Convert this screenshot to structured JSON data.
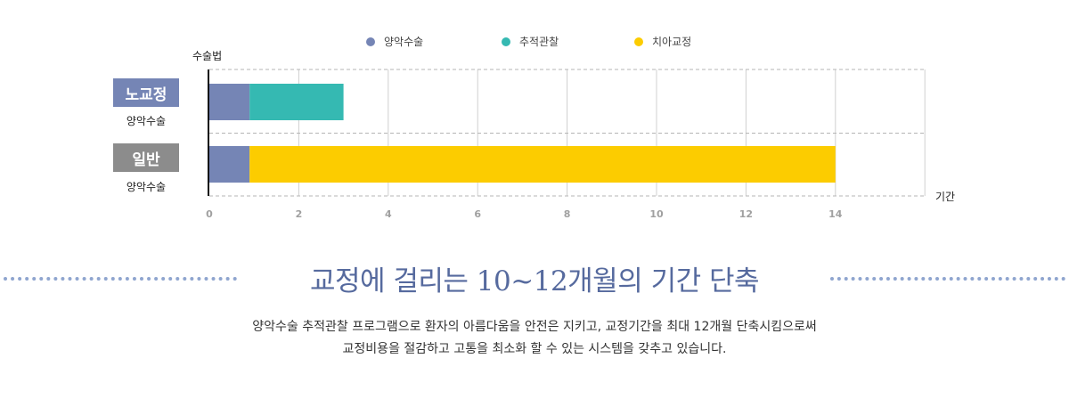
{
  "chart_data": {
    "type": "bar",
    "orientation": "horizontal",
    "stacked": true,
    "categories": [
      {
        "label": "노교정",
        "sublabel": "양악수술"
      },
      {
        "label": "일반",
        "sublabel": "양악수술"
      }
    ],
    "series": [
      {
        "name": "양악수술",
        "color": "#7585b5",
        "values": [
          0.9,
          0.9
        ]
      },
      {
        "name": "추적관찰",
        "color": "#35b9b2",
        "values": [
          2.1,
          0
        ]
      },
      {
        "name": "치아교정",
        "color": "#fccc00",
        "values": [
          0,
          13.1
        ]
      }
    ],
    "xlabel": "기간",
    "ylabel": "수술법",
    "xlim": [
      0,
      16
    ],
    "xticks": [
      0,
      2,
      4,
      6,
      8,
      10,
      12,
      14
    ],
    "grid": true,
    "legend_position": "top"
  },
  "category_badge_colors": [
    "#7585b5",
    "#8c8c8c"
  ],
  "headline": "교정에 걸리는 10~12개월의 기간 단축",
  "description": [
    "양악수술 추적관찰 프로그램으로 환자의 아름다움을 안전은 지키고, 교정기간을 최대 12개월 단축시킴으로써",
    "교정비용을 절감하고 고통을 최소화 할 수 있는 시스템을 갖추고 있습니다."
  ]
}
